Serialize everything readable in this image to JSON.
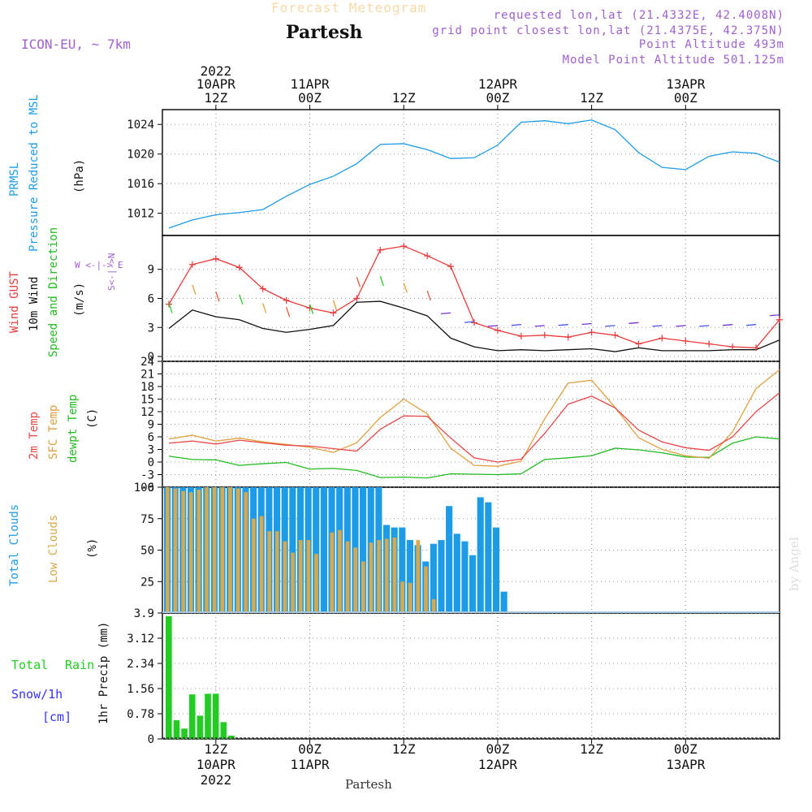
{
  "header": {
    "forecast_title": "Forecast Meteogram",
    "location": "Partesh",
    "model": "ICON-EU, ~ 7km",
    "requested": "requested lon,lat (21.4332E, 42.4008N)",
    "grid_point": "grid point closest lon,lat (21.4375E, 42.375N)",
    "point_altitude": "Point Altitude 493m",
    "model_altitude": "Model Point Altitude 501.125m"
  },
  "footer": {
    "location": "Partesh",
    "credit": "by Angel"
  },
  "colors": {
    "pressure": "#1e9be6",
    "gust": "#e83a3a",
    "wind10m": "#111111",
    "temp2m": "#e84848",
    "sfc": "#e0a040",
    "dewpt": "#22bb22",
    "total_cloud": "#1e9be6",
    "low_cloud": "#d9a84a",
    "rain": "#22cc22",
    "snow": "#3333ff",
    "violet": "#a060d0"
  },
  "time_axis": {
    "top": [
      {
        "hour": "12Z",
        "date": "10APR",
        "year": "2022"
      },
      {
        "hour": "00Z",
        "date": "11APR",
        "year": ""
      },
      {
        "hour": "12Z",
        "date": "",
        "year": ""
      },
      {
        "hour": "00Z",
        "date": "12APR",
        "year": ""
      },
      {
        "hour": "12Z",
        "date": "",
        "year": ""
      },
      {
        "hour": "00Z",
        "date": "13APR",
        "year": ""
      }
    ],
    "bottom": [
      {
        "hour": "12Z",
        "date": "10APR",
        "year": "2022"
      },
      {
        "hour": "00Z",
        "date": "11APR",
        "year": ""
      },
      {
        "hour": "12Z",
        "date": "",
        "year": ""
      },
      {
        "hour": "00Z",
        "date": "12APR",
        "year": ""
      },
      {
        "hour": "12Z",
        "date": "",
        "year": ""
      },
      {
        "hour": "00Z",
        "date": "13APR",
        "year": ""
      }
    ]
  },
  "panel_labels": {
    "pressure": {
      "a": "PRMSL",
      "b": "Pressure Reduced to MSL",
      "unit": "(hPa)"
    },
    "wind": {
      "a": "Wind GUST",
      "b": "10m Wind",
      "c": "Speed and Direction",
      "unit": "(m/s)",
      "compass_ns": "S<-|->N",
      "compass_we": "W <-|-> E"
    },
    "temp": {
      "a": "2m Temp",
      "b": "SFC Temp",
      "c": "dewpt Temp",
      "unit": "(C)"
    },
    "cloud": {
      "a": "Total Clouds",
      "b": "Low Clouds",
      "unit": "(%)"
    },
    "precip": {
      "total": "Total",
      "rain": "Rain",
      "snow": "Snow/1h",
      "cm": "[cm]",
      "unit": "1hr Precip (mm)"
    }
  },
  "chart_data": [
    {
      "type": "line",
      "title": "PRMSL Pressure Reduced to MSL",
      "ylabel": "(hPa)",
      "x_hours": [
        0,
        3,
        6,
        9,
        12,
        15,
        18,
        21,
        24,
        27,
        30,
        33,
        36,
        39,
        42,
        45,
        48,
        51,
        54,
        57,
        60,
        63,
        66,
        69,
        72,
        75,
        78
      ],
      "xlim": [
        0,
        78
      ],
      "ylim": [
        1009,
        1026
      ],
      "yticks": [
        "1012",
        "1016",
        "1020",
        "1024"
      ],
      "series": [
        {
          "name": "PRMSL",
          "values": [
            1010.0,
            1011.1,
            1011.8,
            1012.1,
            1012.5,
            1014.3,
            1015.9,
            1017.0,
            1018.7,
            1021.3,
            1021.4,
            1020.6,
            1019.4,
            1019.5,
            1021.2,
            1024.3,
            1024.5,
            1024.1,
            1024.6,
            1023.3,
            1020.2,
            1018.2,
            1017.9,
            1019.7,
            1020.3,
            1020.1,
            1018.9
          ]
        }
      ]
    },
    {
      "type": "line",
      "title": "Wind GUST / 10m Wind Speed and Direction",
      "ylabel": "(m/s)",
      "x_hours": [
        0,
        3,
        6,
        9,
        12,
        15,
        18,
        21,
        24,
        27,
        30,
        33,
        36,
        39,
        42,
        45,
        48,
        51,
        54,
        57,
        60,
        63,
        66,
        69,
        72,
        75,
        78
      ],
      "xlim": [
        0,
        78
      ],
      "ylim": [
        -0.5,
        12.5
      ],
      "yticks": [
        "0",
        "3",
        "6",
        "9"
      ],
      "series": [
        {
          "name": "Wind GUST",
          "values": [
            5.4,
            9.5,
            10.1,
            9.2,
            7.0,
            5.8,
            5.0,
            4.5,
            6.0,
            11.0,
            11.4,
            10.4,
            9.3,
            3.5,
            2.7,
            2.1,
            2.2,
            2.0,
            2.5,
            2.2,
            1.3,
            1.9,
            1.6,
            1.3,
            1.0,
            0.9,
            3.8
          ]
        },
        {
          "name": "10m Wind",
          "values": [
            2.9,
            4.8,
            4.1,
            3.8,
            2.9,
            2.5,
            2.8,
            3.2,
            5.6,
            5.7,
            5.0,
            4.2,
            1.9,
            1.0,
            0.6,
            0.7,
            0.6,
            0.7,
            0.8,
            0.5,
            0.9,
            0.6,
            0.6,
            0.6,
            0.7,
            0.7,
            1.7
          ]
        }
      ]
    },
    {
      "type": "line",
      "title": "2m Temp / SFC Temp / dewpt Temp",
      "ylabel": "(C)",
      "x_hours": [
        0,
        3,
        6,
        9,
        12,
        15,
        18,
        21,
        24,
        27,
        30,
        33,
        36,
        39,
        42,
        45,
        48,
        51,
        54,
        57,
        60,
        63,
        66,
        69,
        72,
        75,
        78
      ],
      "xlim": [
        0,
        78
      ],
      "ylim": [
        -6,
        24
      ],
      "yticks": [
        "-6",
        "-3",
        "0",
        "3",
        "6",
        "9",
        "12",
        "15",
        "18",
        "21",
        "24"
      ],
      "series": [
        {
          "name": "2m Temp",
          "values": [
            4.5,
            5.0,
            4.3,
            5.2,
            4.6,
            4.0,
            3.8,
            3.2,
            2.6,
            7.8,
            11.0,
            10.9,
            5.7,
            1.0,
            0.0,
            0.7,
            6.8,
            13.8,
            15.7,
            12.9,
            7.6,
            4.8,
            3.4,
            2.8,
            6.0,
            12.0,
            16.5
          ]
        },
        {
          "name": "SFC Temp",
          "values": [
            5.5,
            6.4,
            5.0,
            5.7,
            4.8,
            4.2,
            3.5,
            2.3,
            4.6,
            10.6,
            15.0,
            11.5,
            3.3,
            -0.8,
            -1.0,
            0.2,
            10.3,
            18.8,
            19.5,
            13.0,
            5.8,
            3.0,
            1.5,
            0.9,
            7.2,
            17.5,
            22.0
          ]
        },
        {
          "name": "dewpt Temp",
          "values": [
            1.4,
            0.6,
            0.5,
            -0.8,
            -0.4,
            -0.1,
            -1.7,
            -1.5,
            -2.0,
            -3.7,
            -3.6,
            -3.8,
            -2.8,
            -2.9,
            -3.0,
            -2.8,
            0.6,
            1.0,
            1.5,
            3.3,
            2.9,
            2.2,
            1.2,
            1.1,
            4.5,
            6.0,
            5.5
          ]
        }
      ]
    },
    {
      "type": "bar",
      "title": "Total Clouds / Low Clouds",
      "ylabel": "(%)",
      "categories": [
        "h1",
        "h2",
        "h3",
        "h4",
        "h5",
        "h6",
        "h7",
        "h8",
        "h9",
        "h10",
        "h11",
        "h12",
        "h13",
        "h14",
        "h15",
        "h16",
        "h17",
        "h18",
        "h19",
        "h20",
        "h21",
        "h22",
        "h23",
        "h24",
        "h25",
        "h26",
        "h27",
        "h28",
        "h29",
        "h30",
        "h31",
        "h32",
        "h33",
        "h34",
        "h35",
        "h36",
        "h37",
        "h38",
        "h39",
        "h40",
        "h41",
        "h42",
        "h43",
        "h44",
        "h45",
        "h46",
        "h47",
        "h48",
        "h49",
        "h50",
        "h51",
        "h52",
        "h53",
        "h54",
        "h55",
        "h56",
        "h57",
        "h58",
        "h59",
        "h60",
        "h61",
        "h62",
        "h63",
        "h64",
        "h65",
        "h66",
        "h67",
        "h68",
        "h69",
        "h70",
        "h71",
        "h72",
        "h73",
        "h74",
        "h75",
        "h76",
        "h77",
        "h78"
      ],
      "ylim": [
        0,
        100
      ],
      "yticks": [
        "25",
        "50",
        "75",
        "100"
      ],
      "series": [
        {
          "name": "Total Clouds",
          "values": [
            100,
            100,
            100,
            100,
            100,
            100,
            100,
            100,
            100,
            100,
            100,
            100,
            100,
            100,
            100,
            100,
            100,
            100,
            100,
            100,
            100,
            100,
            100,
            100,
            100,
            100,
            100,
            100,
            70,
            68,
            68,
            58,
            54,
            41,
            55,
            58,
            85,
            63,
            57,
            46,
            92,
            88,
            68,
            17,
            0,
            0,
            0,
            0,
            0,
            0,
            0,
            0,
            0,
            0,
            0,
            0,
            0,
            0,
            0,
            0,
            0,
            0,
            0,
            0,
            0,
            0,
            0,
            0,
            0,
            0,
            0,
            0,
            0,
            0,
            0,
            0,
            0,
            0
          ]
        },
        {
          "name": "Low Clouds",
          "values": [
            100,
            99,
            97,
            96,
            98,
            100,
            100,
            100,
            100,
            99,
            96,
            75,
            77,
            65,
            65,
            57,
            48,
            58,
            58,
            47,
            0,
            64,
            66,
            57,
            52,
            41,
            56,
            58,
            59,
            60,
            25,
            24,
            58,
            37,
            11,
            0,
            0,
            0,
            0,
            0,
            0,
            0,
            0,
            0,
            0,
            0,
            0,
            0,
            0,
            0,
            0,
            0,
            0,
            0,
            0,
            0,
            0,
            0,
            0,
            0,
            0,
            0,
            0,
            0,
            0,
            0,
            0,
            0,
            0,
            0,
            0,
            0,
            0,
            0,
            0,
            0,
            0,
            0
          ]
        }
      ]
    },
    {
      "type": "bar",
      "title": "1hr Precip",
      "ylabel": "1hr Precip (mm)",
      "categories": [
        "h1",
        "h2",
        "h3",
        "h4",
        "h5",
        "h6",
        "h7",
        "h8",
        "h9",
        "h10",
        "h11",
        "h12",
        "h13",
        "h14",
        "h15",
        "h16",
        "h17",
        "h18",
        "h19",
        "h20"
      ],
      "ylim": [
        0,
        3.9
      ],
      "yticks": [
        "0",
        "0.78",
        "1.56",
        "2.34",
        "3.12",
        "3.9"
      ],
      "series": [
        {
          "name": "Total Rain",
          "values": [
            3.8,
            0.58,
            0.32,
            1.38,
            0.72,
            1.4,
            1.4,
            0.52,
            0.1,
            0,
            0,
            0,
            0,
            0,
            0,
            0,
            0,
            0,
            0,
            0
          ]
        },
        {
          "name": "Snow/1h",
          "values": [
            0,
            0,
            0,
            0,
            0,
            0,
            0,
            0,
            0,
            0,
            0,
            0,
            0,
            0,
            0,
            0,
            0,
            0,
            0,
            0
          ]
        }
      ]
    }
  ]
}
